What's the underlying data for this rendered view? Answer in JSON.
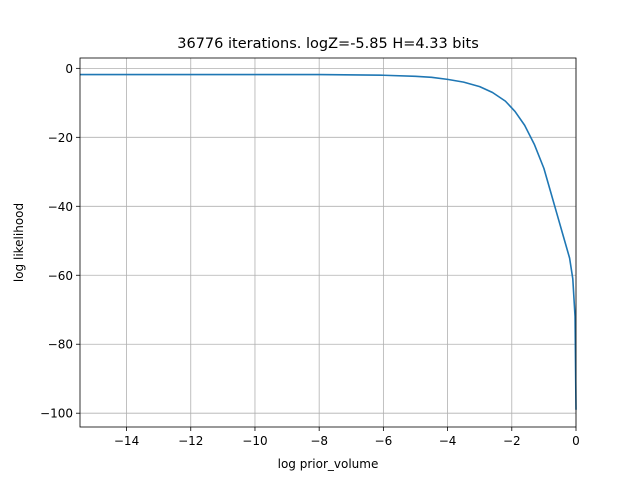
{
  "chart_data": {
    "type": "line",
    "title": "36776 iterations. logZ=-5.85 H=4.33 bits",
    "xlabel": "log prior_volume",
    "ylabel": "log likelihood",
    "xlim": [
      -15.45,
      0.0
    ],
    "ylim": [
      -104.0,
      3.0
    ],
    "xticks": [
      -14,
      -12,
      -10,
      -8,
      -6,
      -4,
      -2,
      0
    ],
    "xtick_labels": [
      "−14",
      "−12",
      "−10",
      "−8",
      "−6",
      "−4",
      "−2",
      "0"
    ],
    "yticks": [
      0,
      -20,
      -40,
      -60,
      -80,
      -100
    ],
    "ytick_labels": [
      "0",
      "−20",
      "−40",
      "−60",
      "−80",
      "−100"
    ],
    "grid": true,
    "series": [
      {
        "color": "#1f77b4",
        "x": [
          -15.45,
          -14,
          -12,
          -10,
          -8,
          -6,
          -5,
          -4.5,
          -4,
          -3.5,
          -3,
          -2.6,
          -2.2,
          -1.9,
          -1.6,
          -1.3,
          -1.0,
          -0.8,
          -0.6,
          -0.4,
          -0.2,
          -0.1,
          -0.03,
          0.0
        ],
        "y": [
          -1.8,
          -1.8,
          -1.8,
          -1.8,
          -1.8,
          -2.0,
          -2.3,
          -2.6,
          -3.2,
          -4.0,
          -5.3,
          -7.0,
          -9.5,
          -12.5,
          -16.5,
          -22.0,
          -29.0,
          -35.5,
          -42.0,
          -48.5,
          -55.0,
          -61.0,
          -72.0,
          -99.0
        ]
      }
    ]
  }
}
